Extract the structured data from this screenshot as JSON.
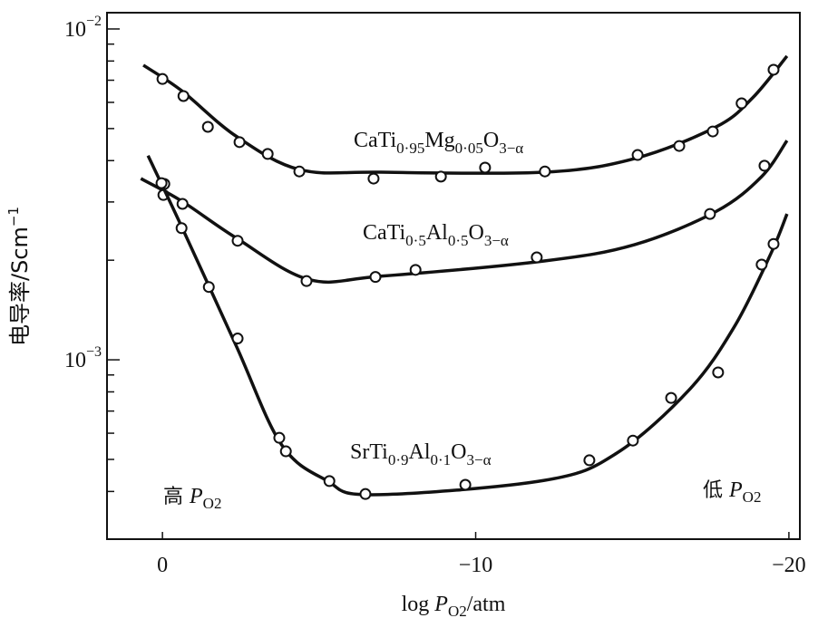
{
  "chart_data": {
    "type": "scatter",
    "xlabel": [
      "log ",
      "P",
      "O2",
      "/atm"
    ],
    "ylabel": [
      "电导率/Scm",
      "−1"
    ],
    "xlim": [
      1.77,
      -20.35
    ],
    "ylim": [
      0.000287,
      0.0112
    ],
    "log_y": true,
    "xticks": [
      0,
      {
        "value": -10,
        "label": "−10"
      },
      {
        "value": -20,
        "label": "−20"
      }
    ],
    "yticks": [
      {
        "value": 0.01,
        "label": "10",
        "exp": "−2"
      },
      {
        "value": 0.001,
        "label": "10",
        "exp": "−3"
      }
    ],
    "minor_yticks": [
      0.0004,
      0.0005,
      0.0006,
      0.0007,
      0.0008,
      0.0009,
      0.002,
      0.003,
      0.004,
      0.005,
      0.006,
      0.007,
      0.008,
      0.009
    ],
    "color": "#111111",
    "annotations": [
      {
        "parts": [
          "高 ",
          "P",
          "O2"
        ]
      },
      {
        "parts": [
          "低 ",
          "P",
          "O2"
        ]
      }
    ],
    "series": [
      {
        "label": [
          "CaTi",
          "0·95",
          "Mg",
          "0·05",
          "O",
          "3−α"
        ],
        "x": [
          0,
          -0.67,
          -1.45,
          -2.46,
          -3.36,
          -4.37,
          -6.74,
          -8.89,
          -10.3,
          -12.21,
          -15.17,
          -16.5,
          -17.57,
          -18.49,
          -19.51
        ],
        "values": [
          0.00706,
          0.00627,
          0.00506,
          0.00455,
          0.00419,
          0.00371,
          0.00353,
          0.00358,
          0.00381,
          0.00371,
          0.00416,
          0.00443,
          0.0049,
          0.00596,
          0.00753
        ],
        "curve_x": [
          0.61,
          -0.61,
          -2.34,
          -4.37,
          -6.98,
          -12.19,
          -15.08,
          -17.68,
          -18.84,
          -19.94
        ],
        "curve_values": [
          0.00777,
          0.00651,
          0.00475,
          0.00376,
          0.00369,
          0.00369,
          0.00406,
          0.00506,
          0.00619,
          0.00828
        ]
      },
      {
        "label": [
          "CaTi",
          "0·5",
          "Al",
          "0·5",
          "O",
          "3−α"
        ],
        "x": [
          -0.06,
          -0.03,
          -0.64,
          -2.4,
          -4.6,
          -6.8,
          -8.08,
          -11.95,
          -17.48,
          -19.22
        ],
        "values": [
          0.0034,
          0.00315,
          0.00296,
          0.00229,
          0.00173,
          0.00178,
          0.00187,
          0.00204,
          0.00276,
          0.00386
        ],
        "curve_x": [
          0.69,
          -0.61,
          -2.34,
          -4.66,
          -6.98,
          -12.19,
          -15.08,
          -17.68,
          -19.13,
          -19.94
        ],
        "curve_values": [
          0.00353,
          0.00302,
          0.00234,
          0.00175,
          0.00179,
          0.00199,
          0.00223,
          0.00281,
          0.00358,
          0.0046
        ]
      },
      {
        "label": [
          "SrTi",
          "0·9",
          "Al",
          "0·1",
          "O",
          "3−α"
        ],
        "x": [
          0.03,
          -0.61,
          -1.48,
          -2.4,
          -3.73,
          -3.94,
          -5.33,
          -6.48,
          -9.67,
          -13.63,
          -15.02,
          -16.24,
          -17.74,
          -19.13,
          -19.51
        ],
        "values": [
          0.00342,
          0.0025,
          0.00166,
          0.00116,
          0.000581,
          0.000529,
          0.00043,
          0.000393,
          0.000419,
          0.000497,
          0.00057,
          0.000767,
          0.000916,
          0.00194,
          0.00224
        ],
        "curve_x": [
          0.46,
          -0.61,
          -2.34,
          -3.79,
          -5.24,
          -6.69,
          -12.19,
          -14.5,
          -16.82,
          -18.26,
          -19.42,
          -19.94
        ],
        "curve_values": [
          0.00414,
          0.00253,
          0.00111,
          0.000556,
          0.000432,
          0.000391,
          0.000432,
          0.000522,
          0.000812,
          0.00126,
          0.00209,
          0.00276
        ]
      }
    ]
  }
}
